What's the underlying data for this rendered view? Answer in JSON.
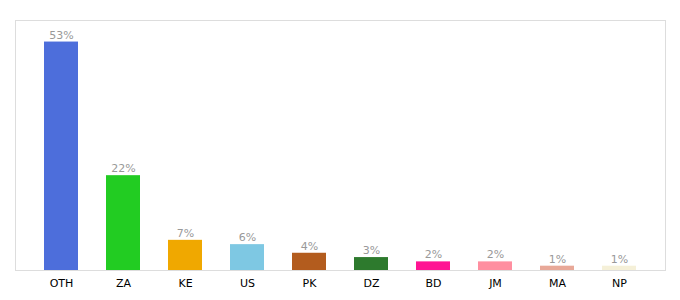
{
  "chart_data": {
    "type": "bar",
    "categories": [
      "OTH",
      "ZA",
      "KE",
      "US",
      "PK",
      "DZ",
      "BD",
      "JM",
      "MA",
      "NP"
    ],
    "values": [
      53,
      22,
      7,
      6,
      4,
      3,
      2,
      2,
      1,
      1
    ],
    "value_labels": [
      "53%",
      "22%",
      "7%",
      "6%",
      "4%",
      "3%",
      "2%",
      "2%",
      "1%",
      "1%"
    ],
    "data_labels": true,
    "colors": [
      "#4d6edb",
      "#22cc22",
      "#f0a800",
      "#7ec8e3",
      "#b35c1e",
      "#2d7a2d",
      "#ff1493",
      "#ff8fa0",
      "#e8a898",
      "#f5f0d8"
    ],
    "ylim": [
      0,
      58
    ],
    "tick_labels": "x"
  }
}
